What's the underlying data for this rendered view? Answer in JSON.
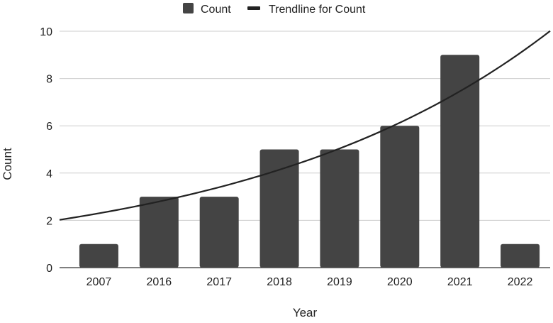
{
  "chart_data": {
    "type": "bar",
    "title": "",
    "xlabel": "Year",
    "ylabel": "Count",
    "categories": [
      "2007",
      "2016",
      "2017",
      "2018",
      "2019",
      "2020",
      "2021",
      "2022"
    ],
    "series": [
      {
        "name": "Count",
        "values": [
          1,
          3,
          3,
          5,
          5,
          6,
          9,
          1
        ]
      }
    ],
    "trendline": {
      "name": "Trendline for Count",
      "type": "exponential",
      "points": [
        {
          "x": "2007",
          "y": 2.3
        },
        {
          "x": "2016",
          "y": 2.9
        },
        {
          "x": "2017",
          "y": 3.4
        },
        {
          "x": "2018",
          "y": 4.0
        },
        {
          "x": "2019",
          "y": 4.9
        },
        {
          "x": "2020",
          "y": 6.1
        },
        {
          "x": "2021",
          "y": 7.5
        },
        {
          "x": "2022",
          "y": 9.3
        }
      ]
    },
    "ylim": [
      0,
      10
    ],
    "yticks": [
      0,
      2,
      4,
      6,
      8,
      10
    ],
    "grid": true,
    "legend_position": "top",
    "colors": {
      "bar": "#444444",
      "trendline": "#222222",
      "grid": "#cccccc"
    }
  }
}
